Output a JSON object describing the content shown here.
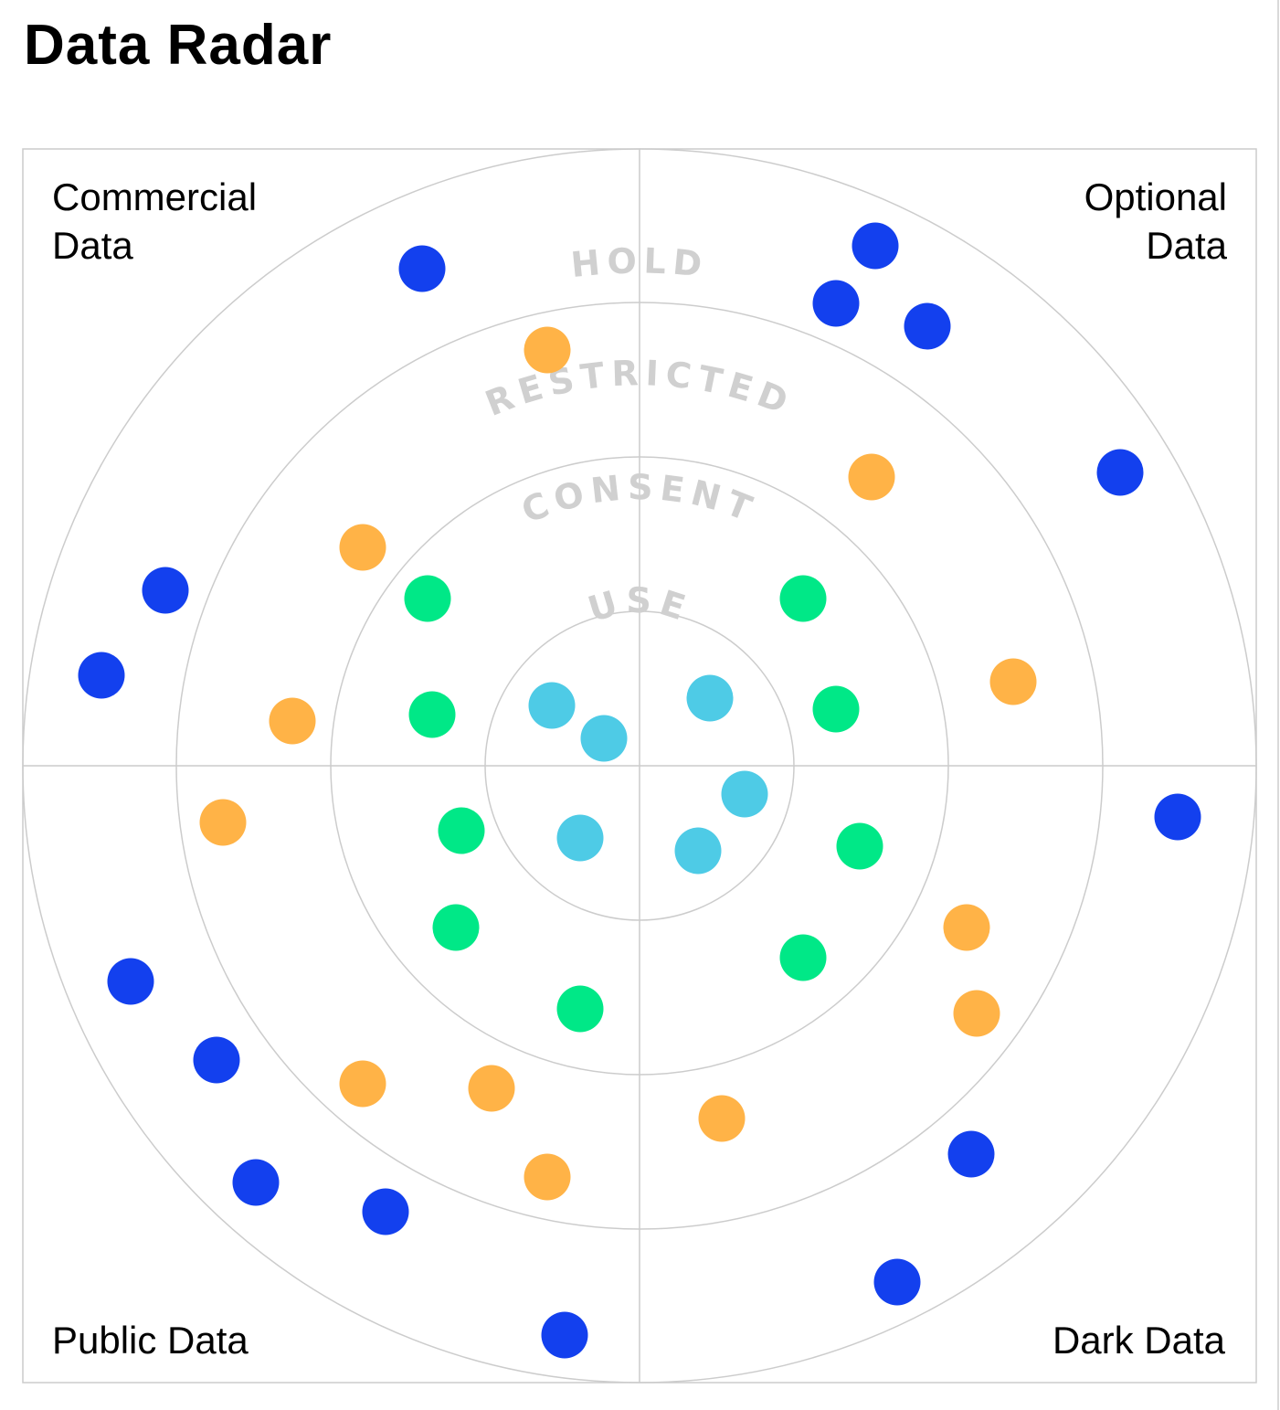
{
  "title": "Data Radar",
  "quadrants": {
    "top_left": {
      "lines": [
        "Commercial",
        "Data"
      ]
    },
    "top_right": {
      "lines": [
        "Optional",
        "Data"
      ]
    },
    "bottom_left": {
      "lines": [
        "Public Data"
      ]
    },
    "bottom_right": {
      "lines": [
        "Dark Data"
      ]
    }
  },
  "rings": [
    {
      "label": "USE",
      "color": "#4ecbe6"
    },
    {
      "label": "CONSENT",
      "color": "#00e887"
    },
    {
      "label": "RESTRICTED",
      "color": "#ffb347"
    },
    {
      "label": "HOLD",
      "color": "#1340ee"
    }
  ],
  "colors": {
    "grid": "#cccccc",
    "ring_label": "#d0d0d0"
  },
  "points": [
    {
      "ring": "USE",
      "quadrant": "top_left"
    },
    {
      "ring": "USE",
      "quadrant": "top_left"
    },
    {
      "ring": "USE",
      "quadrant": "top_right"
    },
    {
      "ring": "USE",
      "quadrant": "bottom_right"
    },
    {
      "ring": "USE",
      "quadrant": "bottom_left"
    },
    {
      "ring": "USE",
      "quadrant": "bottom_right"
    },
    {
      "ring": "CONSENT",
      "quadrant": "top_left"
    },
    {
      "ring": "CONSENT",
      "quadrant": "top_left"
    },
    {
      "ring": "CONSENT",
      "quadrant": "top_right"
    },
    {
      "ring": "CONSENT",
      "quadrant": "top_right"
    },
    {
      "ring": "CONSENT",
      "quadrant": "bottom_left"
    },
    {
      "ring": "CONSENT",
      "quadrant": "bottom_left"
    },
    {
      "ring": "CONSENT",
      "quadrant": "bottom_left"
    },
    {
      "ring": "CONSENT",
      "quadrant": "bottom_right"
    },
    {
      "ring": "CONSENT",
      "quadrant": "bottom_right"
    },
    {
      "ring": "RESTRICTED",
      "quadrant": "top_left"
    },
    {
      "ring": "RESTRICTED",
      "quadrant": "top_left"
    },
    {
      "ring": "RESTRICTED",
      "quadrant": "top_left"
    },
    {
      "ring": "RESTRICTED",
      "quadrant": "top_right"
    },
    {
      "ring": "RESTRICTED",
      "quadrant": "top_right"
    },
    {
      "ring": "RESTRICTED",
      "quadrant": "bottom_left"
    },
    {
      "ring": "RESTRICTED",
      "quadrant": "bottom_left"
    },
    {
      "ring": "RESTRICTED",
      "quadrant": "bottom_left"
    },
    {
      "ring": "RESTRICTED",
      "quadrant": "bottom_left"
    },
    {
      "ring": "RESTRICTED",
      "quadrant": "bottom_right"
    },
    {
      "ring": "RESTRICTED",
      "quadrant": "bottom_right"
    },
    {
      "ring": "RESTRICTED",
      "quadrant": "bottom_right"
    },
    {
      "ring": "HOLD",
      "quadrant": "top_left"
    },
    {
      "ring": "HOLD",
      "quadrant": "top_left"
    },
    {
      "ring": "HOLD",
      "quadrant": "top_left"
    },
    {
      "ring": "HOLD",
      "quadrant": "top_right"
    },
    {
      "ring": "HOLD",
      "quadrant": "top_right"
    },
    {
      "ring": "HOLD",
      "quadrant": "top_right"
    },
    {
      "ring": "HOLD",
      "quadrant": "top_right"
    },
    {
      "ring": "HOLD",
      "quadrant": "bottom_right"
    },
    {
      "ring": "HOLD",
      "quadrant": "bottom_left"
    },
    {
      "ring": "HOLD",
      "quadrant": "bottom_left"
    },
    {
      "ring": "HOLD",
      "quadrant": "bottom_left"
    },
    {
      "ring": "HOLD",
      "quadrant": "bottom_left"
    },
    {
      "ring": "HOLD",
      "quadrant": "bottom_left"
    },
    {
      "ring": "HOLD",
      "quadrant": "bottom_right"
    },
    {
      "ring": "HOLD",
      "quadrant": "bottom_right"
    }
  ]
}
